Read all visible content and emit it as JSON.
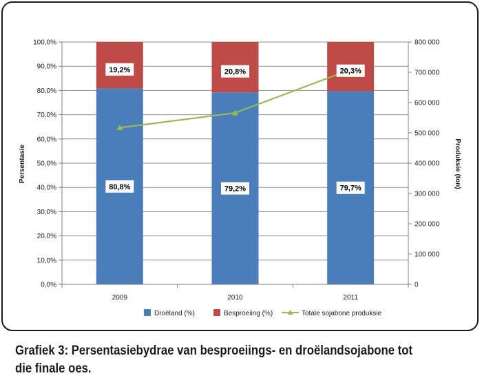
{
  "caption": "Grafiek 3: Persentasiebydrae van besproeiings- en droëlandsojabone tot die finale oes.",
  "colors": {
    "dryland": "#4a7ebb",
    "irrigated": "#be4b48",
    "production": "#98b954",
    "grid": "#8c8c8c",
    "axis": "#7f7f7f"
  },
  "chart_data": {
    "type": "bar",
    "stacked": true,
    "categories": [
      "2009",
      "2010",
      "2011"
    ],
    "series": [
      {
        "name": "Droëland (%)",
        "axis": "left",
        "values": [
          80.8,
          79.2,
          79.7
        ],
        "labels": [
          "80,8%",
          "79,2%",
          "79,7%"
        ],
        "color": "#4a7ebb"
      },
      {
        "name": "Besproeiing (%)",
        "axis": "left",
        "values": [
          19.2,
          20.8,
          20.3
        ],
        "labels": [
          "19,2%",
          "20,8%",
          "20,3%"
        ],
        "color": "#be4b48"
      },
      {
        "name": "Totale sojabone produksie",
        "type": "line",
        "axis": "right",
        "values": [
          517000,
          566000,
          709000
        ],
        "color": "#98b954",
        "marker": "triangle"
      }
    ],
    "ylabel": "Persentasie",
    "y2label": "Produksie (ton)",
    "ylim": [
      0,
      100
    ],
    "y2lim": [
      0,
      800000
    ],
    "yticks": [
      "0,0%",
      "10,0%",
      "20,0%",
      "30,0%",
      "40,0%",
      "50,0%",
      "60,0%",
      "70,0%",
      "80,0%",
      "90,0%",
      "100,0%"
    ],
    "y2ticks": [
      "0",
      "100 000",
      "200 000",
      "300 000",
      "400 000",
      "500 000",
      "600 000",
      "700 000",
      "800 000"
    ],
    "grid": true,
    "legend": "bottom"
  }
}
